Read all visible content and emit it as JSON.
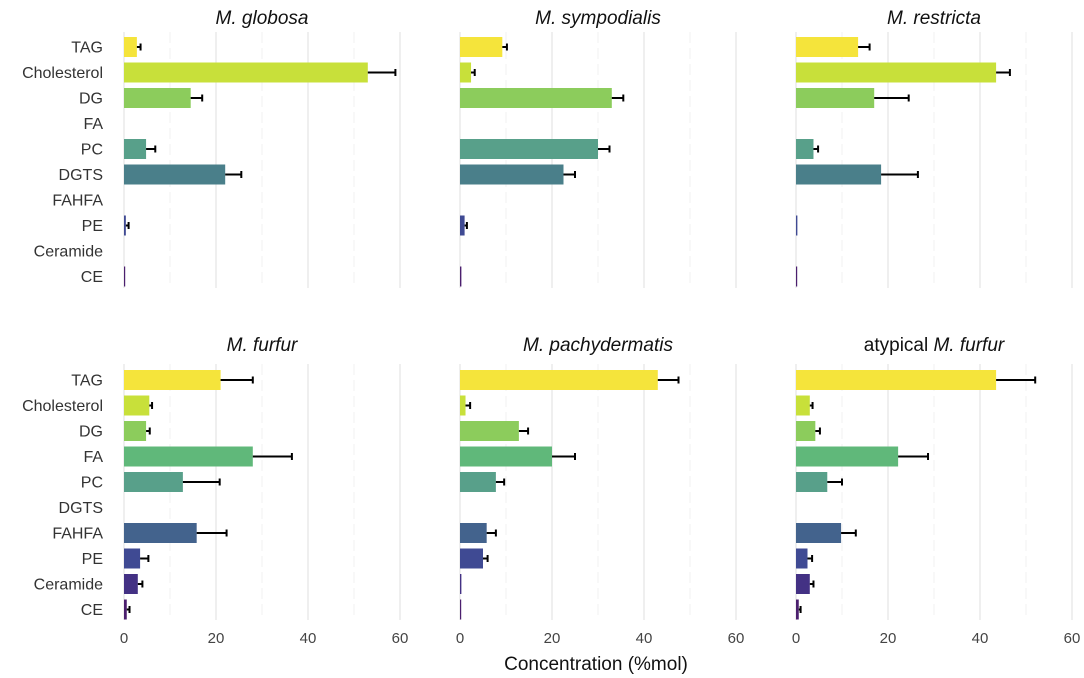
{
  "chart_data": {
    "type": "bar",
    "orientation": "horizontal",
    "xlabel": "Concentration (%mol)",
    "xlim": [
      0,
      60
    ],
    "xticks": [
      0,
      20,
      40,
      60
    ],
    "categories": [
      "TAG",
      "Cholesterol",
      "DG",
      "FA",
      "PC",
      "DGTS",
      "FAHFA",
      "PE",
      "Ceramide",
      "CE"
    ],
    "colors": [
      "#f5e43b",
      "#c8e03a",
      "#8ccc5c",
      "#60b87a",
      "#58a08a",
      "#4a7f8a",
      "#43638d",
      "#3f4a93",
      "#433184",
      "#4b1f6e"
    ],
    "panels": [
      {
        "title_prefix": "",
        "title_species": "M. globosa",
        "values": [
          2.8,
          53,
          14.5,
          0,
          4.8,
          22,
          0,
          0.4,
          0,
          0.2
        ],
        "errors": [
          0.8,
          6,
          2.5,
          0,
          2,
          3.5,
          0,
          0.6,
          0,
          0
        ]
      },
      {
        "title_prefix": "",
        "title_species": "M. sympodialis",
        "values": [
          9.2,
          2.4,
          33,
          0,
          30,
          22.5,
          0,
          1,
          0,
          0.3
        ],
        "errors": [
          1,
          0.8,
          2.5,
          0,
          2.5,
          2.5,
          0,
          0.5,
          0,
          0
        ]
      },
      {
        "title_prefix": "",
        "title_species": "M. restricta",
        "values": [
          13.5,
          43.5,
          17,
          0,
          3.8,
          18.5,
          0,
          0.3,
          0,
          0.2
        ],
        "errors": [
          2.5,
          3,
          7.5,
          0,
          1,
          8,
          0,
          0,
          0,
          0
        ]
      },
      {
        "title_prefix": "",
        "title_species": "M. furfur",
        "values": [
          21,
          5.5,
          4.8,
          28,
          12.8,
          0,
          15.8,
          3.5,
          3,
          0.6
        ],
        "errors": [
          7,
          0.6,
          0.8,
          8.5,
          8,
          0,
          6.5,
          1.8,
          1,
          0.6
        ]
      },
      {
        "title_prefix": "",
        "title_species": "M. pachydermatis",
        "values": [
          43,
          1.2,
          12.8,
          20,
          7.8,
          0,
          5.8,
          5,
          0.3,
          0.2
        ],
        "errors": [
          4.5,
          1,
          2,
          5,
          1.8,
          0,
          2,
          1,
          0,
          0
        ]
      },
      {
        "title_prefix": "atypical ",
        "title_species": "M. furfur",
        "values": [
          43.5,
          3,
          4.2,
          22.2,
          6.8,
          0,
          9.8,
          2.5,
          3,
          0.6
        ],
        "errors": [
          8.5,
          0.6,
          1,
          6.5,
          3.2,
          0,
          3.2,
          1,
          0.8,
          0.4
        ]
      }
    ]
  }
}
